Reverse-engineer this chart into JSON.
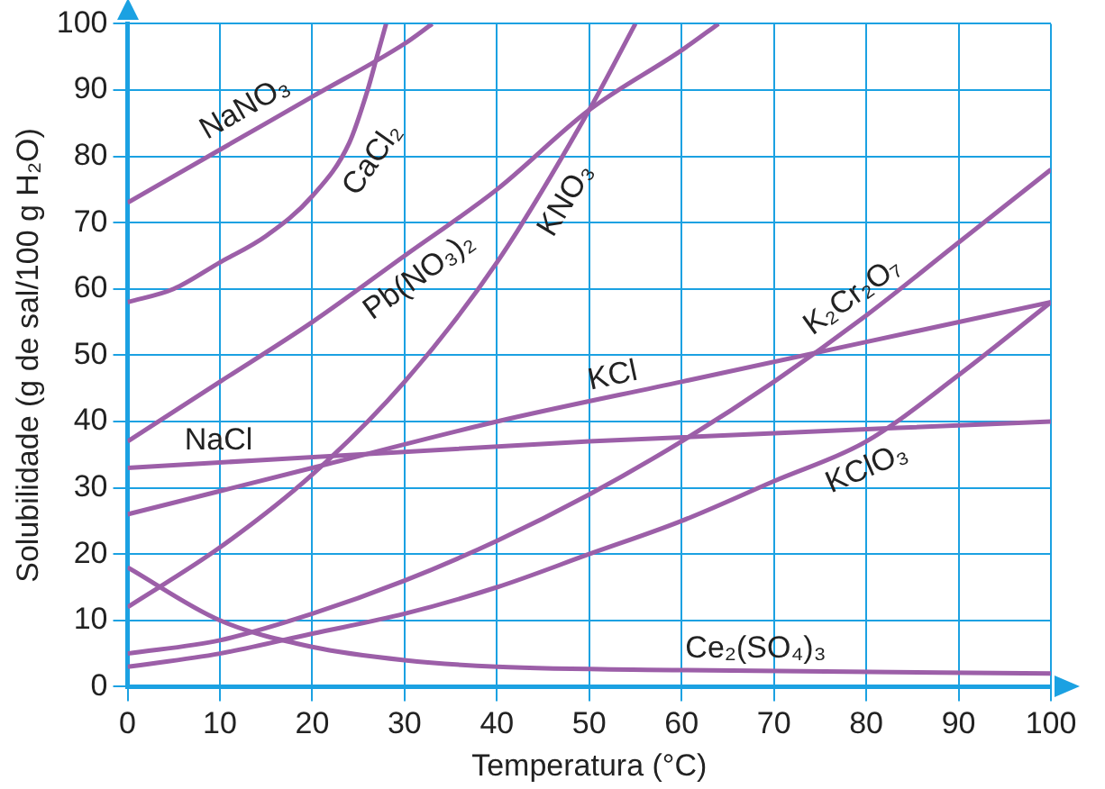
{
  "chart_data": {
    "type": "line",
    "xlabel": "Temperatura (°C)",
    "ylabel": "Solubilidade (g de sal/100 g H₂O)",
    "xlim": [
      0,
      100
    ],
    "xticks": [
      0,
      10,
      20,
      30,
      40,
      50,
      60,
      70,
      80,
      90,
      100
    ],
    "ylim": [
      0,
      100
    ],
    "yticks": [
      0,
      10,
      20,
      30,
      40,
      50,
      60,
      70,
      80,
      90,
      100
    ],
    "grid": true,
    "legend": false,
    "marker": "none",
    "line_style": "solid",
    "series": [
      {
        "name": "NaNO₃",
        "color": "#9c5fa8",
        "x": [
          0,
          10,
          20,
          30,
          33
        ],
        "values": [
          73,
          81,
          89,
          97,
          100
        ]
      },
      {
        "name": "CaCl₂",
        "color": "#9c5fa8",
        "x": [
          0,
          5,
          10,
          15,
          20,
          24,
          26,
          27,
          28
        ],
        "values": [
          58,
          60,
          64,
          68,
          74,
          82,
          90,
          95,
          100
        ]
      },
      {
        "name": "Pb(NO₃)₂",
        "color": "#9c5fa8",
        "x": [
          0,
          10,
          20,
          30,
          40,
          50,
          60,
          64
        ],
        "values": [
          37,
          46,
          55,
          65,
          75,
          87,
          96,
          100
        ]
      },
      {
        "name": "KNO₃",
        "color": "#9c5fa8",
        "x": [
          0,
          10,
          20,
          30,
          40,
          50,
          55
        ],
        "values": [
          12,
          21,
          32,
          46,
          64,
          87,
          100
        ]
      },
      {
        "name": "K₂Cr₂O₇",
        "color": "#9c5fa8",
        "x": [
          0,
          10,
          20,
          30,
          40,
          50,
          60,
          70,
          80,
          90,
          100
        ],
        "values": [
          5,
          7,
          11,
          16,
          22,
          29,
          37,
          46,
          56,
          67,
          78
        ]
      },
      {
        "name": "KCl",
        "color": "#9c5fa8",
        "x": [
          0,
          20,
          40,
          60,
          80,
          100
        ],
        "values": [
          26,
          33,
          40,
          46,
          52,
          58
        ]
      },
      {
        "name": "NaCl",
        "color": "#9c5fa8",
        "x": [
          0,
          50,
          100
        ],
        "values": [
          33,
          37,
          40
        ]
      },
      {
        "name": "KClO₃",
        "color": "#9c5fa8",
        "x": [
          0,
          10,
          20,
          30,
          40,
          50,
          60,
          70,
          80,
          90,
          100
        ],
        "values": [
          3,
          5,
          8,
          11,
          15,
          20,
          25,
          31,
          37,
          47,
          58
        ]
      },
      {
        "name": "Ce₂(SO₄)₃",
        "color": "#9c5fa8",
        "x": [
          0,
          10,
          20,
          30,
          40,
          60,
          100
        ],
        "values": [
          18,
          10,
          6,
          4,
          3,
          2.5,
          2
        ]
      }
    ]
  }
}
